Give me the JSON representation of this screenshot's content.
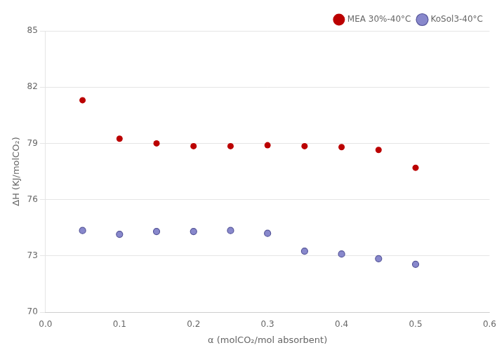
{
  "chart_data": {
    "type": "scatter",
    "x_label": "α (molCO₂/mol absorbent)",
    "y_label": "ΔH (KJ/molCO₂)",
    "x": [
      0.05,
      0.1,
      0.15,
      0.2,
      0.25,
      0.3,
      0.35,
      0.4,
      0.45,
      0.5
    ],
    "series": [
      {
        "name": "MEA 30%-40°C",
        "color": "#bb0000",
        "marker": "circle",
        "values": [
          81.3,
          79.25,
          79.0,
          78.85,
          78.85,
          78.9,
          78.85,
          78.8,
          78.65,
          77.7
        ]
      },
      {
        "name": "KoSol3-40°C",
        "color": "#8888cc",
        "marker": "circle",
        "values": [
          74.35,
          74.15,
          74.3,
          74.3,
          74.35,
          74.2,
          73.25,
          73.1,
          72.85,
          72.55
        ]
      }
    ],
    "xlim": [
      0.0,
      0.6
    ],
    "ylim": [
      70,
      85
    ],
    "xticks": [
      {
        "value": 0.0,
        "label": "0.0"
      },
      0.1,
      0.2,
      0.3,
      0.4,
      0.5,
      0.6
    ],
    "yticks": [
      70,
      73,
      76,
      79,
      82,
      85
    ],
    "grid": "y",
    "legend": "upper right"
  }
}
